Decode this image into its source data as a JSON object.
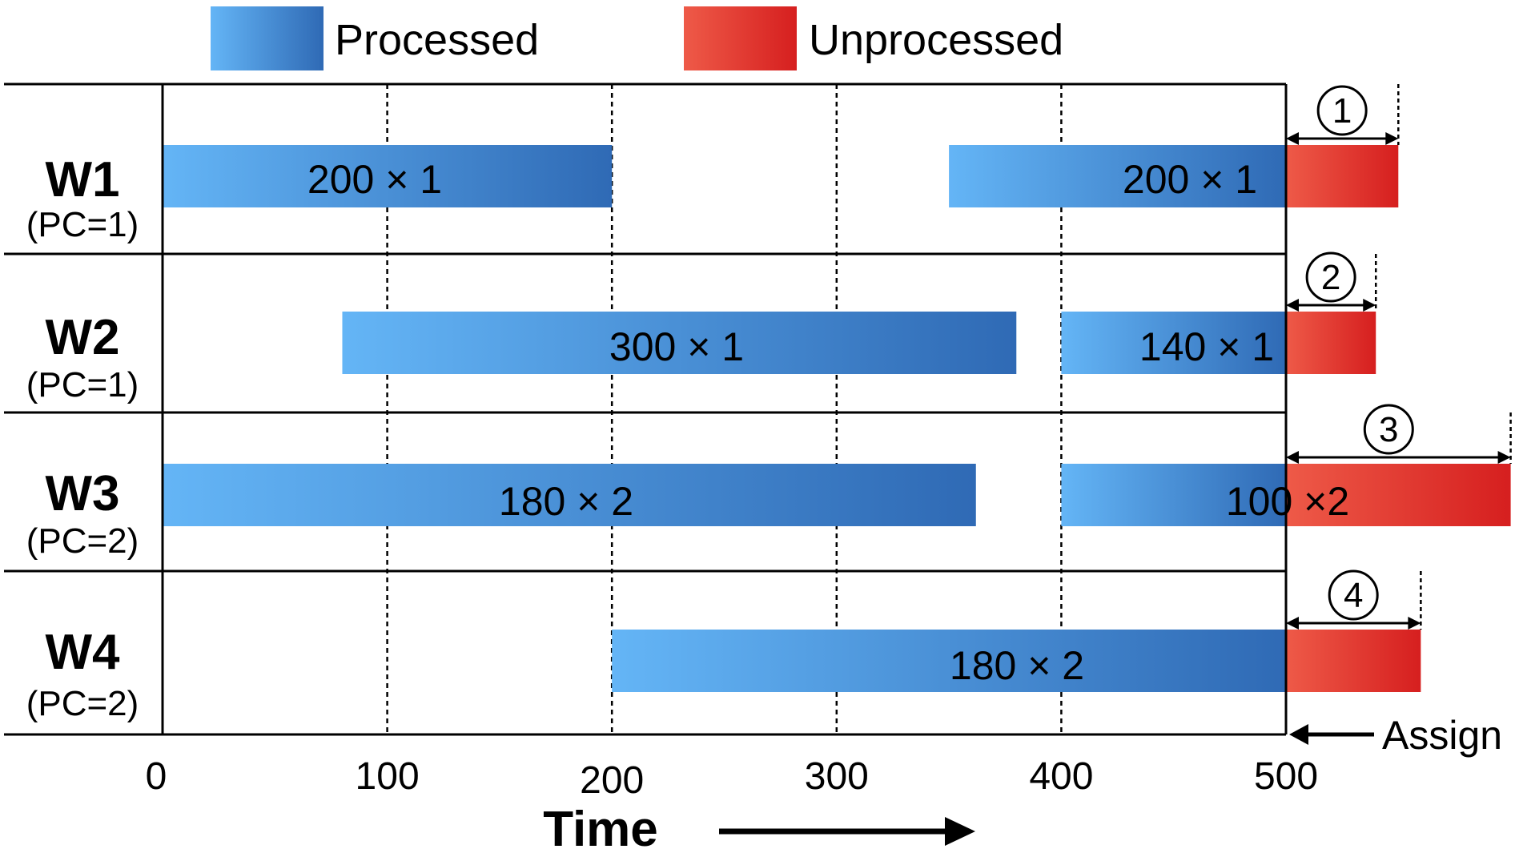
{
  "legend": [
    {
      "label": "Processed",
      "color_start": "#64b5f6",
      "color_end": "#2f6ab5"
    },
    {
      "label": "Unprocessed",
      "color_start": "#ee5a48",
      "color_end": "#d61f1f"
    }
  ],
  "axis": {
    "title": "Time",
    "ticks": [
      "0",
      "100",
      "200",
      "300",
      "400",
      "500"
    ],
    "tick_values": [
      0,
      100,
      200,
      300,
      400,
      500
    ]
  },
  "assign_label": "Assign",
  "workers": [
    {
      "name": "W1",
      "pc": "(PC=1)"
    },
    {
      "name": "W2",
      "pc": "(PC=1)"
    },
    {
      "name": "W3",
      "pc": "(PC=2)"
    },
    {
      "name": "W4",
      "pc": "(PC=2)"
    }
  ],
  "processed_bars": [
    {
      "worker": 0,
      "start": 0,
      "end": 200,
      "label": "200 × 1"
    },
    {
      "worker": 0,
      "start": 350,
      "end": 500,
      "label": "200 × 1"
    },
    {
      "worker": 1,
      "start": 80,
      "end": 380,
      "label": "300 × 1"
    },
    {
      "worker": 1,
      "start": 400,
      "end": 500,
      "label": "140 × 1"
    },
    {
      "worker": 2,
      "start": 0,
      "end": 362,
      "label": "180 × 2"
    },
    {
      "worker": 2,
      "start": 400,
      "end": 500,
      "label": "100 ×2"
    },
    {
      "worker": 3,
      "start": 200,
      "end": 500,
      "label": "180 × 2"
    }
  ],
  "unprocessed_bars": [
    {
      "worker": 0,
      "start": 500,
      "end": 550,
      "marker": "1"
    },
    {
      "worker": 1,
      "start": 500,
      "end": 540,
      "marker": "2"
    },
    {
      "worker": 2,
      "start": 500,
      "end": 600,
      "marker": "3"
    },
    {
      "worker": 3,
      "start": 500,
      "end": 560,
      "marker": "4"
    }
  ]
}
